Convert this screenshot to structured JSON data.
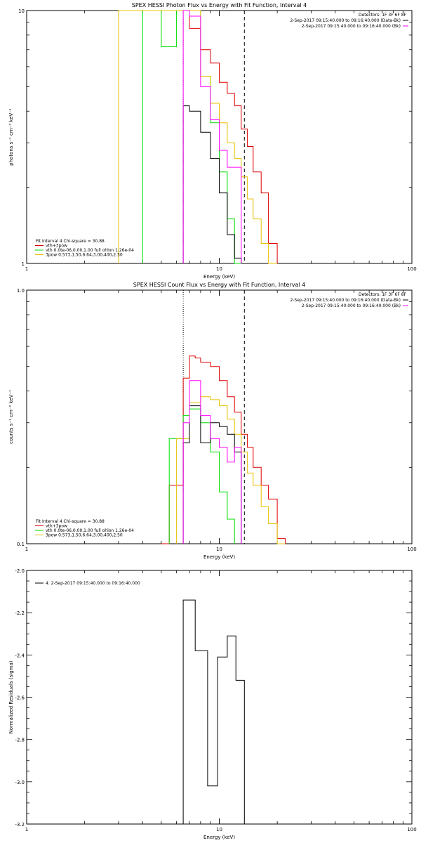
{
  "colors": {
    "data": "#000000",
    "background": "#ff00ff",
    "total": "#dd0000",
    "thermal": "#00dd00",
    "power": "#e8c000",
    "axis": "#000000"
  },
  "chart_data": [
    {
      "type": "line",
      "title": "SPEX HESSI Photon Flux vs Energy with Fit Function, Interval 4",
      "xlabel": "Energy (keV)",
      "ylabel": "photons s⁻¹ cm⁻² keV⁻¹",
      "xscale": "log",
      "yscale": "log",
      "xlim": [
        1,
        100
      ],
      "ylim": [
        1,
        10
      ],
      "x_ticks": [
        {
          "value": 1,
          "label": "1"
        },
        {
          "value": 10,
          "label": "10"
        },
        {
          "value": 100,
          "label": "100"
        }
      ],
      "y_ticks": [
        {
          "value": 1,
          "label": "1"
        },
        {
          "value": 10,
          "label": "10"
        }
      ],
      "detectors": "Detectors: 1F 3F 6F 8F",
      "legend_right": [
        {
          "text": "2-Sep-2017 09:15:40.000 to 09:16:40.000 (Data-Bk)",
          "color": "#000000"
        },
        {
          "text": "2-Sep-2017 09:15:40.000 to 09:16:40.000 (Bk)",
          "color": "#ff00ff"
        }
      ],
      "legend_left": [
        {
          "text": "Fit Interval 4   Chi-square = 30.88",
          "color": null
        },
        {
          "text": "vth+3pow",
          "color": "#dd0000"
        },
        {
          "text": "vth 0.0te-06,0.00,1.00  full ohlon 1.26e-04",
          "color": "#00dd00"
        },
        {
          "text": "3pow 0.573,1.50,6.64,3.00,400,2.50",
          "color": "#e8c000"
        }
      ],
      "vlines": [
        {
          "x": 6.5,
          "style": "dotted"
        },
        {
          "x": 13.5,
          "style": "dashed"
        }
      ],
      "series": [
        {
          "name": "vth+3pow",
          "color": "#dd0000",
          "edges": [
            3,
            4,
            5,
            6,
            7,
            8,
            9,
            10,
            11,
            12,
            13,
            14,
            15,
            16.5,
            18,
            20
          ],
          "values": [
            10,
            10,
            10,
            10,
            8.5,
            7,
            6.2,
            5.2,
            4.7,
            4.2,
            3.4,
            2.9,
            2.3,
            1.9,
            1.2
          ]
        },
        {
          "name": "vth",
          "color": "#00dd00",
          "edges": [
            4,
            5,
            6,
            7,
            8,
            9,
            10,
            11,
            12,
            13
          ],
          "values": [
            10,
            7.2,
            10,
            10,
            5.5,
            3.6,
            2.3,
            1.5,
            1.0
          ]
        },
        {
          "name": "3pow",
          "color": "#e8c000",
          "edges": [
            3,
            6,
            7,
            8,
            9,
            10,
            11,
            12,
            13,
            14,
            15,
            16.5,
            18,
            20
          ],
          "values": [
            10,
            10,
            10,
            5.5,
            4.3,
            3.6,
            3.0,
            2.6,
            2.2,
            1.8,
            1.5,
            1.2,
            1.0
          ]
        },
        {
          "name": "Data-Bk",
          "color": "#000000",
          "edges": [
            6.5,
            7,
            8,
            9,
            10,
            11,
            12,
            13
          ],
          "values": [
            4.2,
            4.0,
            3.3,
            2.6,
            1.9,
            1.3,
            1.05
          ]
        },
        {
          "name": "Bk",
          "color": "#ff00ff",
          "edges": [
            6.5,
            7,
            8,
            9,
            10,
            11,
            12,
            13
          ],
          "values": [
            10,
            9.5,
            5.0,
            3.7,
            2.8,
            2.4,
            2.4
          ]
        }
      ]
    },
    {
      "type": "line",
      "title": "SPEX HESSI Count Flux vs Energy with Fit Function, Interval 4",
      "xlabel": "Energy (keV)",
      "ylabel": "counts s⁻¹ cm⁻² keV⁻¹",
      "xscale": "log",
      "yscale": "log",
      "xlim": [
        1,
        100
      ],
      "ylim": [
        0.1,
        1.0
      ],
      "x_ticks": [
        {
          "value": 1,
          "label": "1"
        },
        {
          "value": 10,
          "label": "10"
        },
        {
          "value": 100,
          "label": "100"
        }
      ],
      "y_ticks": [
        {
          "value": 0.1,
          "label": "0.1"
        },
        {
          "value": 1.0,
          "label": "1.0"
        }
      ],
      "detectors": "Detectors: 1F 3F 6F 8F",
      "legend_right": [
        {
          "text": "2-Sep-2017 09:15:40.000 to 09:16:40.000 (Data-Bk)",
          "color": "#000000"
        },
        {
          "text": "2-Sep-2017 09:15:40.000 to 09:16:40.000 (Bk)",
          "color": "#ff00ff"
        }
      ],
      "legend_left": [
        {
          "text": "Fit Interval 4   Chi-square = 30.88",
          "color": null
        },
        {
          "text": "vth+3pow",
          "color": "#dd0000"
        },
        {
          "text": "vth 0.0te-06,0.00,1.00  full ohlon 1.26e-04",
          "color": "#00dd00"
        },
        {
          "text": "3pow 0.573,1.50,6.64,3.00,400,2.50",
          "color": "#e8c000"
        }
      ],
      "vlines": [
        {
          "x": 6.5,
          "style": "dotted"
        },
        {
          "x": 13.5,
          "style": "dashed"
        }
      ],
      "series": [
        {
          "name": "vth+3pow",
          "color": "#dd0000",
          "edges": [
            5,
            5.5,
            6,
            6.5,
            7,
            7.5,
            8,
            9,
            10,
            11,
            12,
            13,
            14,
            15,
            16.5,
            18,
            20,
            22
          ],
          "values": [
            0.1,
            0.17,
            0.17,
            0.45,
            0.55,
            0.54,
            0.52,
            0.5,
            0.44,
            0.38,
            0.33,
            0.27,
            0.24,
            0.2,
            0.17,
            0.15,
            0.105
          ]
        },
        {
          "name": "vth",
          "color": "#00dd00",
          "edges": [
            5.5,
            6,
            6.5,
            7,
            7.5,
            8,
            9,
            10,
            11,
            12
          ],
          "values": [
            0.26,
            0.26,
            0.32,
            0.34,
            0.34,
            0.3,
            0.23,
            0.16,
            0.125
          ]
        },
        {
          "name": "3pow",
          "color": "#e8c000",
          "edges": [
            6,
            7,
            8,
            9,
            10,
            11,
            12,
            13,
            14,
            15,
            16.5,
            18,
            20,
            22
          ],
          "values": [
            0.26,
            0.36,
            0.38,
            0.37,
            0.35,
            0.31,
            0.27,
            0.23,
            0.19,
            0.17,
            0.14,
            0.12,
            0.1
          ]
        },
        {
          "name": "Data-Bk",
          "color": "#000000",
          "edges": [
            6.5,
            7,
            7.5,
            8,
            9,
            10,
            11,
            12,
            13
          ],
          "values": [
            0.25,
            0.35,
            0.35,
            0.25,
            0.3,
            0.29,
            0.27,
            0.23
          ]
        },
        {
          "name": "Bk",
          "color": "#ff00ff",
          "edges": [
            6.5,
            7,
            7.5,
            8,
            9,
            10,
            11,
            12,
            13
          ],
          "values": [
            0.3,
            0.44,
            0.44,
            0.32,
            0.26,
            0.24,
            0.21,
            0.24
          ]
        }
      ]
    },
    {
      "type": "line",
      "title": "",
      "xlabel": "Energy (keV)",
      "ylabel": "Normalized Residuals (sigma)",
      "xscale": "log",
      "yscale": "linear",
      "xlim": [
        1,
        100
      ],
      "ylim": [
        -3.2,
        -2.0
      ],
      "x_ticks": [
        {
          "value": 1,
          "label": "1"
        },
        {
          "value": 10,
          "label": "10"
        },
        {
          "value": 100,
          "label": "100"
        }
      ],
      "y_ticks": [
        {
          "value": -2.0,
          "label": "-2.0"
        },
        {
          "value": -2.2,
          "label": "-2.2"
        },
        {
          "value": -2.4,
          "label": "-2.4"
        },
        {
          "value": -2.6,
          "label": "-2.6"
        },
        {
          "value": -2.8,
          "label": "-2.8"
        },
        {
          "value": -3.0,
          "label": "-3.0"
        },
        {
          "value": -3.2,
          "label": "-3.2"
        }
      ],
      "legend_left": [
        {
          "text": "4.  2-Sep-2017 09:15:40.000 to 09:16:40.000",
          "color": "#000000"
        }
      ],
      "series": [
        {
          "color": "#000000",
          "edges": [
            6.5,
            7.5,
            8.7,
            9.8,
            11.0,
            12.2,
            13.5
          ],
          "values": [
            -2.14,
            -2.38,
            -3.02,
            -2.41,
            -2.31,
            -2.52
          ]
        }
      ]
    }
  ]
}
